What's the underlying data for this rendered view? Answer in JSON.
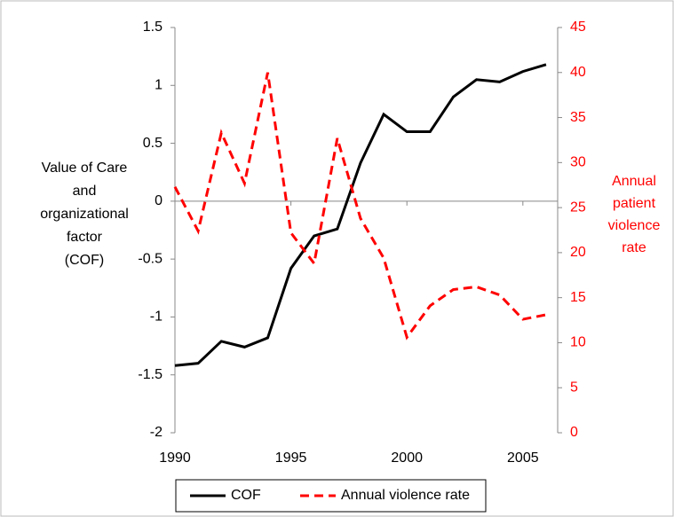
{
  "chart_data": {
    "type": "line",
    "x": [
      1990,
      1991,
      1992,
      1993,
      1994,
      1995,
      1996,
      1997,
      1998,
      1999,
      2000,
      2001,
      2002,
      2003,
      2004,
      2005,
      2006
    ],
    "series": [
      {
        "name": "COF",
        "color": "#000000",
        "dash": false,
        "values": [
          -1.42,
          -1.4,
          -1.21,
          -1.26,
          -1.18,
          -0.58,
          -0.3,
          -0.24,
          0.33,
          0.75,
          0.6,
          0.6,
          0.9,
          1.05,
          1.03,
          1.12,
          1.18
        ]
      },
      {
        "name": "Annual violence rate",
        "color": "#ff0000",
        "dash": true,
        "axis": "y2",
        "values": [
          27.3,
          22.4,
          33.3,
          27.7,
          40.0,
          22.2,
          18.8,
          32.7,
          23.8,
          19.4,
          10.6,
          14.1,
          15.9,
          16.2,
          15.3,
          12.6,
          13.1
        ]
      }
    ],
    "xlim": [
      1990,
      2006.5
    ],
    "xticks": [
      1990,
      1995,
      2000,
      2005
    ],
    "ylim": [
      -2,
      1.5
    ],
    "yticks": [
      1.5,
      1,
      0.5,
      0,
      -0.5,
      -1,
      -1.5,
      -2
    ],
    "y2lim": [
      0,
      45
    ],
    "y2ticks": [
      45,
      40,
      35,
      30,
      25,
      20,
      15,
      10,
      5,
      0
    ],
    "ylabel": [
      "Value of Care",
      "and",
      "organizational",
      "factor",
      "(COF)"
    ],
    "y2label": [
      "Annual",
      "patient",
      "violence",
      "rate"
    ],
    "legend": "bottom"
  }
}
